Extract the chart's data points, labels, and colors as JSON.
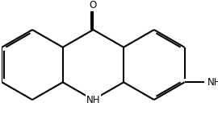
{
  "bg_color": "#ffffff",
  "bond_color": "#000000",
  "text_color": "#000000",
  "line_width": 1.5,
  "font_size": 8.5,
  "dbo": 0.055,
  "figsize": [
    2.7,
    1.48
  ],
  "dpi": 100,
  "xlim": [
    -2.6,
    3.5
  ],
  "ylim": [
    -1.55,
    1.85
  ]
}
